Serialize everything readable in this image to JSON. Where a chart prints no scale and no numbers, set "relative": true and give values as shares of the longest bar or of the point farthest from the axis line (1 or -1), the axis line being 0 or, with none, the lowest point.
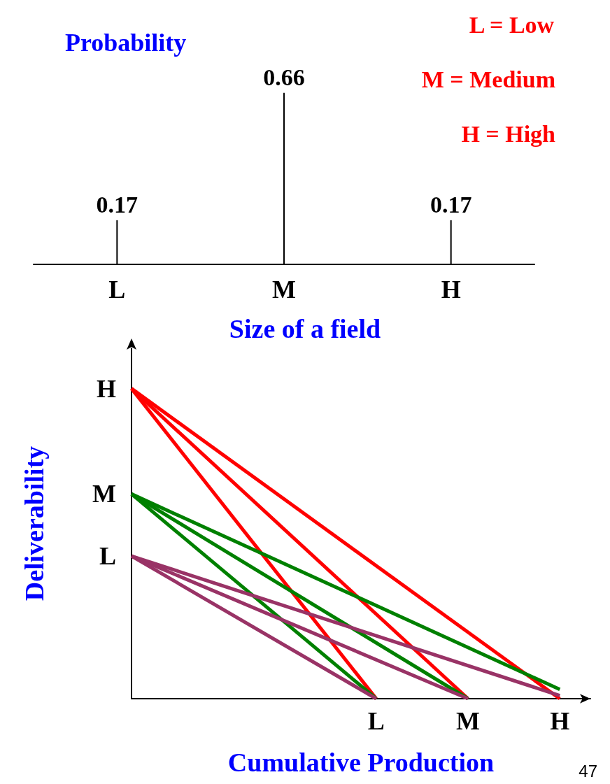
{
  "chart_data": [
    {
      "type": "bar",
      "title": "Probability",
      "categories": [
        "L",
        "M",
        "H"
      ],
      "values": [
        0.17,
        0.66,
        0.17
      ],
      "color": "#000000",
      "data_labels": true,
      "tick_labels": "x",
      "annotations": [
        "L = Low",
        "M = Medium",
        "H = High"
      ]
    },
    {
      "type": "line",
      "relative": true,
      "title": "Size of a field",
      "xlabel": "Cumulative Production",
      "ylabel": "Deliverability",
      "categories": [
        null,
        null,
        null,
        null,
        null,
        null,
        null,
        null,
        "L",
        null,
        null,
        "M",
        null,
        null,
        "H",
        null
      ],
      "series": [
        {
          "color": "#ff0000",
          "values": [
            1,
            null,
            null,
            null,
            null,
            null,
            null,
            null,
            0,
            null,
            null,
            null,
            null,
            null,
            null,
            null
          ]
        },
        {
          "color": "#ff0000",
          "values": [
            1,
            null,
            null,
            null,
            null,
            null,
            null,
            null,
            null,
            null,
            null,
            0,
            null,
            null,
            null,
            null
          ]
        },
        {
          "color": "#ff0000",
          "values": [
            1,
            null,
            null,
            null,
            null,
            null,
            null,
            null,
            null,
            null,
            null,
            null,
            null,
            null,
            0,
            null
          ]
        },
        {
          "color": "#008000",
          "values": [
            0.66,
            null,
            null,
            null,
            null,
            null,
            null,
            null,
            0,
            null,
            null,
            null,
            null,
            null,
            null,
            null
          ]
        },
        {
          "color": "#008000",
          "values": [
            0.66,
            null,
            null,
            null,
            null,
            null,
            null,
            null,
            null,
            null,
            null,
            0,
            null,
            null,
            null,
            null
          ]
        },
        {
          "color": "#008000",
          "values": [
            0.66,
            null,
            null,
            null,
            null,
            null,
            null,
            null,
            null,
            null,
            null,
            null,
            null,
            null,
            0.03,
            null
          ]
        },
        {
          "color": "#993366",
          "values": [
            0.46,
            null,
            null,
            null,
            null,
            null,
            null,
            null,
            0,
            null,
            null,
            null,
            null,
            null,
            null,
            null
          ]
        },
        {
          "color": "#993366",
          "values": [
            0.46,
            null,
            null,
            null,
            null,
            null,
            null,
            null,
            null,
            null,
            null,
            0,
            null,
            null,
            null,
            null
          ]
        },
        {
          "color": "#993366",
          "values": [
            0.46,
            null,
            null,
            null,
            null,
            null,
            null,
            null,
            null,
            null,
            null,
            null,
            null,
            null,
            0.01,
            null
          ]
        }
      ],
      "annotations": [
        "H",
        "M",
        "L",
        "47"
      ]
    }
  ]
}
